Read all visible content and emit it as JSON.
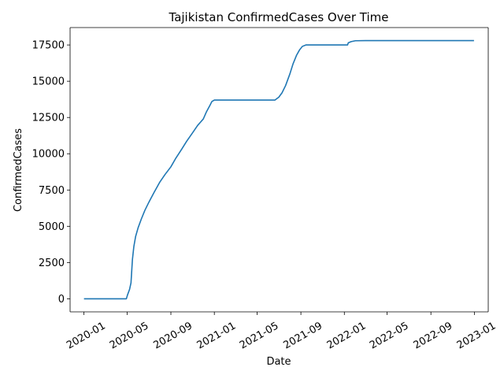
{
  "chart_data": {
    "type": "line",
    "title": "Tajikistan  ConfirmedCases Over Time",
    "xlabel": "Date",
    "ylabel": "ConfirmedCases",
    "grid": false,
    "legend": "none",
    "line_color": "#1f77b4",
    "x_ticks": [
      "2020-01",
      "2020-05",
      "2020-09",
      "2021-01",
      "2021-05",
      "2021-09",
      "2022-01",
      "2022-05",
      "2022-09",
      "2023-01"
    ],
    "y_ticks": [
      "0",
      "2500",
      "5000",
      "7500",
      "10000",
      "12500",
      "15000",
      "17500"
    ],
    "xlim": [
      "2019-11-23",
      "2023-02-09"
    ],
    "ylim": [
      -900,
      18700
    ],
    "series": [
      {
        "x": [
          "2020-01-01",
          "2020-04-29",
          "2020-05-02",
          "2020-05-08",
          "2020-05-12",
          "2020-05-13",
          "2020-05-16",
          "2020-05-20",
          "2020-05-25",
          "2020-06-01",
          "2020-06-10",
          "2020-06-20",
          "2020-07-01",
          "2020-07-15",
          "2020-08-01",
          "2020-08-15",
          "2020-09-01",
          "2020-09-15",
          "2020-10-01",
          "2020-10-15",
          "2020-11-01",
          "2020-11-15",
          "2020-12-01",
          "2020-12-10",
          "2020-12-20",
          "2020-12-25",
          "2021-01-01",
          "2021-01-15",
          "2021-02-01",
          "2021-03-01",
          "2021-04-01",
          "2021-05-01",
          "2021-06-01",
          "2021-06-10",
          "2021-06-20",
          "2021-07-01",
          "2021-07-10",
          "2021-07-20",
          "2021-08-01",
          "2021-08-10",
          "2021-08-20",
          "2021-08-28",
          "2021-09-05",
          "2021-09-15",
          "2021-10-01",
          "2021-11-01",
          "2021-12-01",
          "2022-01-01",
          "2022-01-10",
          "2022-01-12",
          "2022-01-20",
          "2022-02-01",
          "2022-03-01",
          "2022-06-01",
          "2022-09-01",
          "2022-12-31"
        ],
        "y": [
          0,
          0,
          250,
          650,
          1100,
          1500,
          2700,
          3600,
          4300,
          4900,
          5500,
          6100,
          6650,
          7300,
          8050,
          8550,
          9100,
          9700,
          10300,
          10850,
          11450,
          11950,
          12400,
          12900,
          13350,
          13600,
          13700,
          13700,
          13700,
          13700,
          13700,
          13700,
          13700,
          13700,
          13700,
          13900,
          14200,
          14700,
          15500,
          16200,
          16800,
          17150,
          17400,
          17500,
          17500,
          17500,
          17500,
          17500,
          17500,
          17650,
          17730,
          17790,
          17800,
          17800,
          17800,
          17800
        ]
      }
    ]
  }
}
